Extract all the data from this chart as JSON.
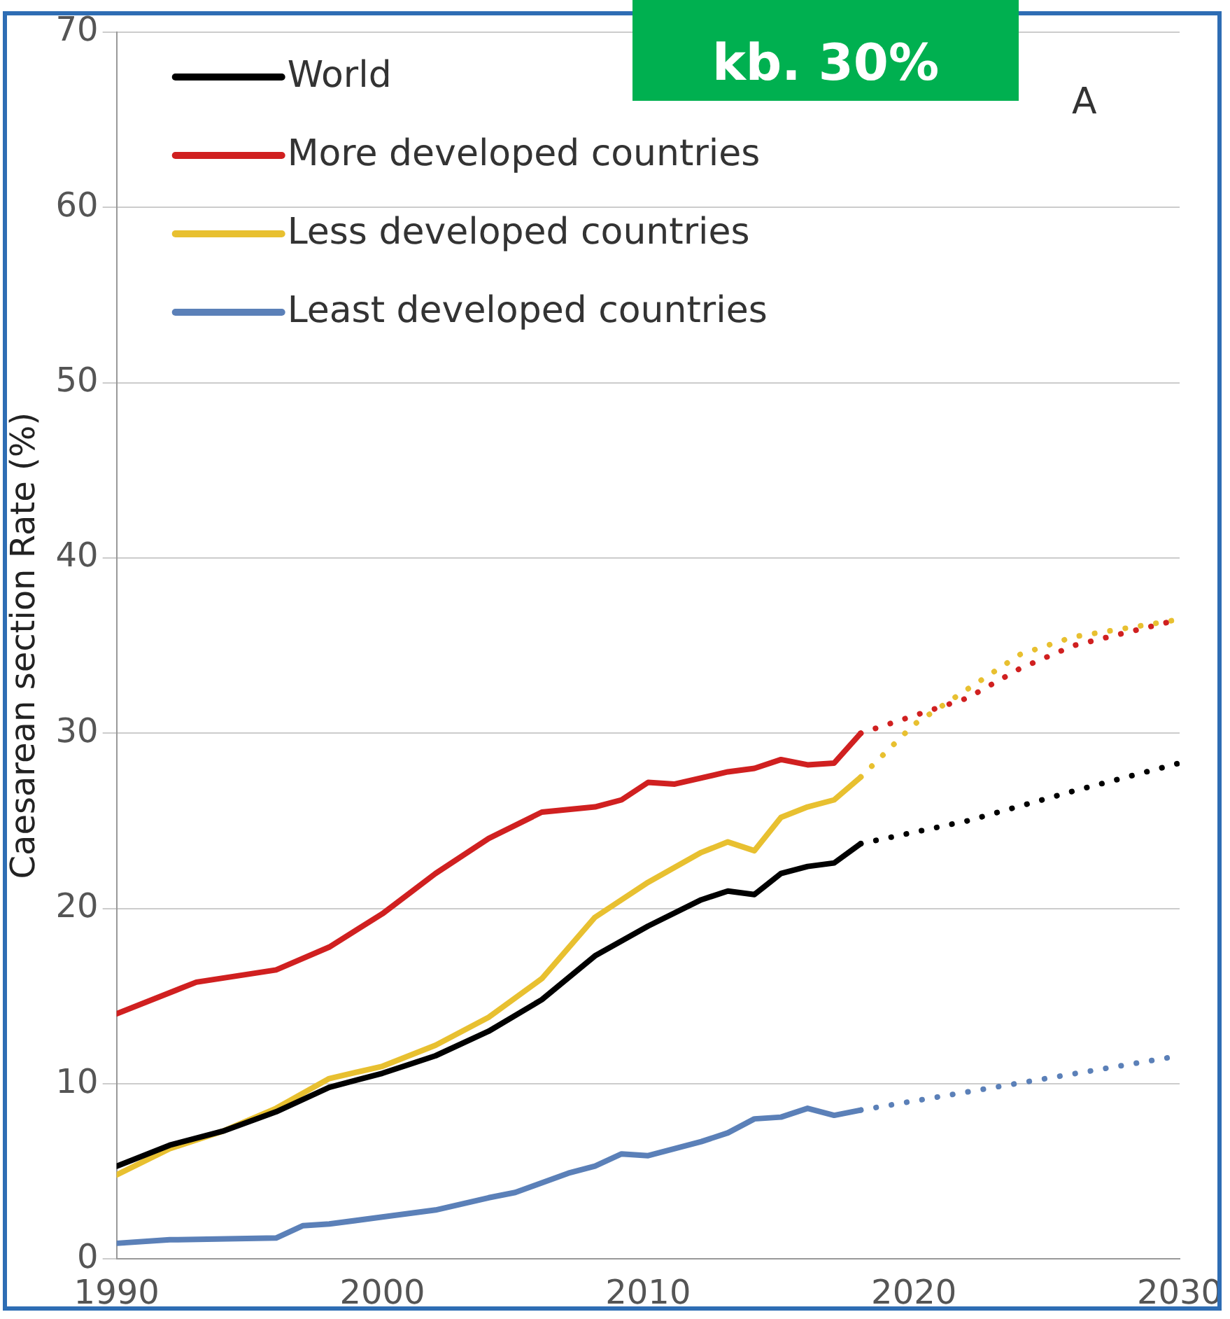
{
  "chart_data": {
    "type": "line",
    "ylabel": "Caesarean section Rate (%)",
    "xlim": [
      1990,
      2030
    ],
    "xticks": [
      1990,
      2000,
      2010,
      2020,
      2030
    ],
    "ylim": [
      0,
      70
    ],
    "yticks": [
      0,
      10,
      20,
      30,
      40,
      50,
      60,
      70
    ],
    "grid": "y",
    "legend": "top left",
    "marker": "none",
    "annotations": [
      "kb. 30%",
      "A"
    ],
    "series": [
      {
        "name": "World",
        "color": "#000000",
        "x": [
          1990,
          1992,
          1994,
          1996,
          1998,
          2000,
          2002,
          2004,
          2006,
          2008,
          2010,
          2012,
          2013,
          2014,
          2015,
          2016,
          2017,
          2018
        ],
        "values": [
          5.3,
          6.5,
          7.3,
          8.4,
          9.8,
          10.6,
          11.6,
          13,
          14.8,
          17.3,
          19,
          20.5,
          21,
          20.8,
          22,
          22.4,
          22.6,
          23.7
        ]
      },
      {
        "name": "More developed countries",
        "color": "#d02020",
        "x": [
          1990,
          1993,
          1996,
          1998,
          2000,
          2002,
          2004,
          2006,
          2008,
          2009,
          2010,
          2011,
          2013,
          2014,
          2015,
          2016,
          2017,
          2018
        ],
        "values": [
          14,
          15.8,
          16.5,
          17.8,
          19.7,
          22,
          24,
          25.5,
          25.8,
          26.2,
          27.2,
          27.1,
          27.8,
          28,
          28.5,
          28.2,
          28.3,
          30
        ]
      },
      {
        "name": "Less developed countries",
        "color": "#e8c030",
        "x": [
          1990,
          1992,
          1994,
          1996,
          1998,
          2000,
          2002,
          2004,
          2006,
          2008,
          2010,
          2012,
          2013,
          2014,
          2015,
          2016,
          2017,
          2018
        ],
        "values": [
          4.8,
          6.3,
          7.3,
          8.6,
          10.3,
          11,
          12.2,
          13.8,
          16,
          19.5,
          21.5,
          23.2,
          23.8,
          23.3,
          25.2,
          25.8,
          26.2,
          27.5
        ]
      },
      {
        "name": "Least developed countries",
        "color": "#5b80b8",
        "x": [
          1990,
          1992,
          1996,
          1997,
          1998,
          2000,
          2002,
          2004,
          2005,
          2007,
          2008,
          2009,
          2010,
          2012,
          2013,
          2014,
          2015,
          2016,
          2017,
          2018
        ],
        "values": [
          0.9,
          1.1,
          1.2,
          1.9,
          2,
          2.4,
          2.8,
          3.5,
          3.8,
          4.9,
          5.3,
          6,
          5.9,
          6.7,
          7.2,
          8,
          8.1,
          8.6,
          8.2,
          8.5
        ]
      },
      {
        "color": "#000000",
        "line_style": "dotted",
        "x": [
          2018,
          2022,
          2026,
          2030
        ],
        "values": [
          23.7,
          25,
          26.7,
          28.3
        ]
      },
      {
        "color": "#d02020",
        "line_style": "dotted",
        "x": [
          2018,
          2020,
          2022,
          2024,
          2026,
          2030
        ],
        "values": [
          30,
          31,
          32,
          33.7,
          35,
          36.5
        ]
      },
      {
        "color": "#e8c030",
        "line_style": "dotted",
        "x": [
          2018,
          2020,
          2022,
          2024,
          2026,
          2030
        ],
        "values": [
          27.5,
          30.5,
          32.5,
          34.5,
          35.5,
          36.5
        ]
      },
      {
        "color": "#5b80b8",
        "line_style": "dotted",
        "x": [
          2018,
          2030
        ],
        "values": [
          8.5,
          11.6
        ]
      }
    ]
  }
}
